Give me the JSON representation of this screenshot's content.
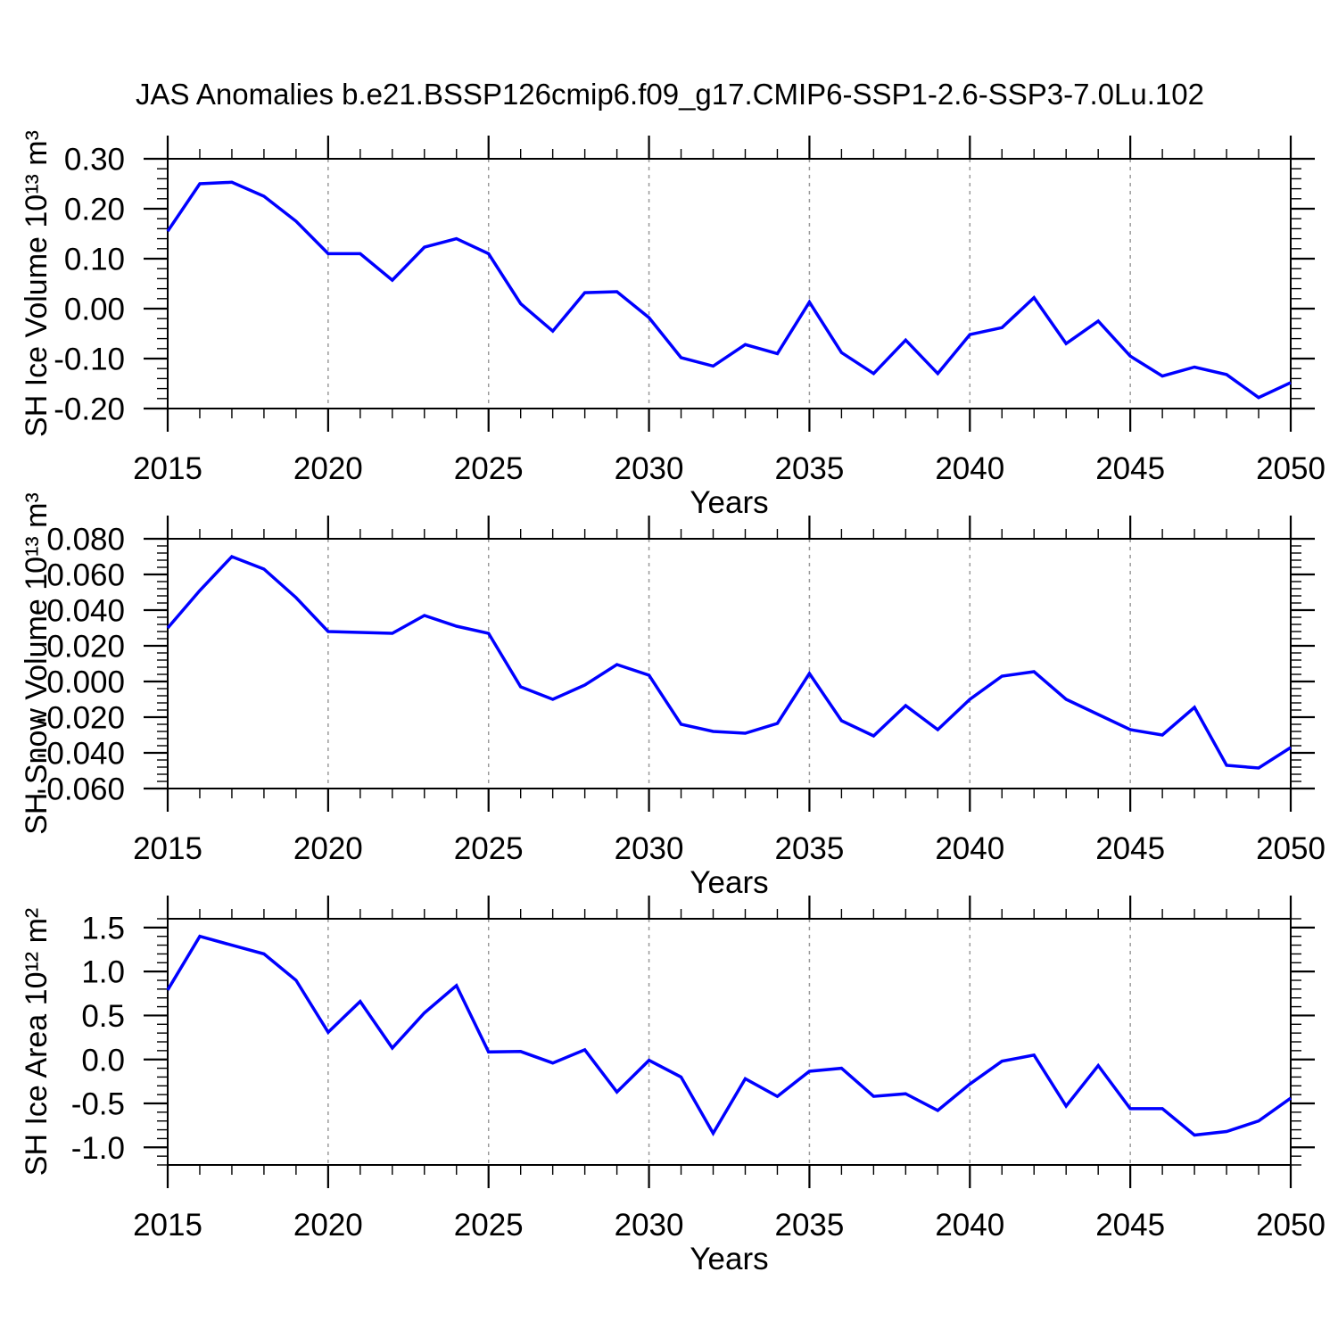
{
  "title": "JAS Anomalies b.e21.BSSP126cmip6.f09_g17.CMIP6-SSP1-2.6-SSP3-7.0Lu.102",
  "colors": {
    "line": "#0000ff",
    "axis": "#000000",
    "grid": "#9a9a9a",
    "background": "#ffffff"
  },
  "years": [
    2015,
    2016,
    2017,
    2018,
    2019,
    2020,
    2021,
    2022,
    2023,
    2024,
    2025,
    2026,
    2027,
    2028,
    2029,
    2030,
    2031,
    2032,
    2033,
    2034,
    2035,
    2036,
    2037,
    2038,
    2039,
    2040,
    2041,
    2042,
    2043,
    2044,
    2045,
    2046,
    2047,
    2048,
    2049,
    2050
  ],
  "x_axis": {
    "title": "Years",
    "range": [
      2015,
      2050
    ],
    "tick_values": [
      2015,
      2020,
      2025,
      2030,
      2035,
      2040,
      2045,
      2050
    ],
    "tick_labels": [
      "2015",
      "2020",
      "2025",
      "2030",
      "2035",
      "2040",
      "2045",
      "2050"
    ],
    "minor_step": 1,
    "grid_years": [
      2020,
      2025,
      2030,
      2035,
      2040,
      2045
    ]
  },
  "chart_data": [
    {
      "id": "sh-ice-volume",
      "type": "line",
      "ylabel": "SH Ice Volume 10¹³ m³",
      "ylim": [
        -0.2,
        0.3
      ],
      "ytick_values": [
        0.3,
        0.2,
        0.1,
        0.0,
        -0.1,
        -0.2
      ],
      "ytick_labels": [
        "0.30",
        "0.20",
        "0.10",
        "0.00",
        "-0.10",
        "-0.20"
      ],
      "y_minor_step": 0.02,
      "grid": "vertical-dashed",
      "series": [
        {
          "name": "SH Ice Volume anomaly",
          "values": [
            0.155,
            0.25,
            0.253,
            0.225,
            0.175,
            0.11,
            0.11,
            0.057,
            0.123,
            0.14,
            0.11,
            0.01,
            -0.045,
            0.032,
            0.034,
            -0.018,
            -0.098,
            -0.115,
            -0.072,
            -0.09,
            0.013,
            -0.088,
            -0.13,
            -0.063,
            -0.13,
            -0.052,
            -0.038,
            0.022,
            -0.07,
            -0.025,
            -0.095,
            -0.135,
            -0.117,
            -0.132,
            -0.178,
            -0.148
          ]
        }
      ]
    },
    {
      "id": "sh-snow-volume",
      "type": "line",
      "ylabel": "SH Snow Volume 10¹³ m³",
      "ylim": [
        -0.06,
        0.08
      ],
      "ytick_values": [
        0.08,
        0.06,
        0.04,
        0.02,
        0.0,
        -0.02,
        -0.04,
        -0.06
      ],
      "ytick_labels": [
        "0.080",
        "0.060",
        "0.040",
        "0.020",
        "0.000",
        "-0.020",
        "-0.040",
        "-0.060"
      ],
      "y_minor_step": 0.004,
      "grid": "vertical-dashed",
      "series": [
        {
          "name": "SH Snow Volume anomaly",
          "values": [
            0.03,
            0.051,
            0.07,
            0.063,
            0.047,
            0.028,
            0.0275,
            0.027,
            0.037,
            0.031,
            0.027,
            -0.003,
            -0.01,
            -0.002,
            0.0095,
            0.0035,
            -0.024,
            -0.028,
            -0.029,
            -0.0235,
            0.0045,
            -0.022,
            -0.0305,
            -0.0135,
            -0.027,
            -0.01,
            0.003,
            0.0055,
            -0.01,
            -0.0185,
            -0.027,
            -0.03,
            -0.0145,
            -0.047,
            -0.0485,
            -0.037
          ]
        }
      ]
    },
    {
      "id": "sh-ice-area",
      "type": "line",
      "ylabel": "SH Ice Area 10¹² m²",
      "ylim": [
        -1.2,
        1.6
      ],
      "ytick_values": [
        1.5,
        1.0,
        0.5,
        0.0,
        -0.5,
        -1.0
      ],
      "ytick_labels": [
        "1.5",
        "1.0",
        "0.5",
        "0.0",
        "-0.5",
        "-1.0"
      ],
      "y_minor_step": 0.1,
      "grid": "vertical-dashed",
      "series": [
        {
          "name": "SH Ice Area anomaly",
          "values": [
            0.79,
            1.4,
            1.3,
            1.2,
            0.9,
            0.31,
            0.66,
            0.13,
            0.53,
            0.84,
            0.085,
            0.09,
            -0.04,
            0.11,
            -0.37,
            -0.01,
            -0.2,
            -0.84,
            -0.22,
            -0.42,
            -0.135,
            -0.1,
            -0.42,
            -0.39,
            -0.58,
            -0.28,
            -0.02,
            0.05,
            -0.53,
            -0.07,
            -0.56,
            -0.56,
            -0.86,
            -0.82,
            -0.7,
            -0.44
          ]
        }
      ]
    }
  ]
}
